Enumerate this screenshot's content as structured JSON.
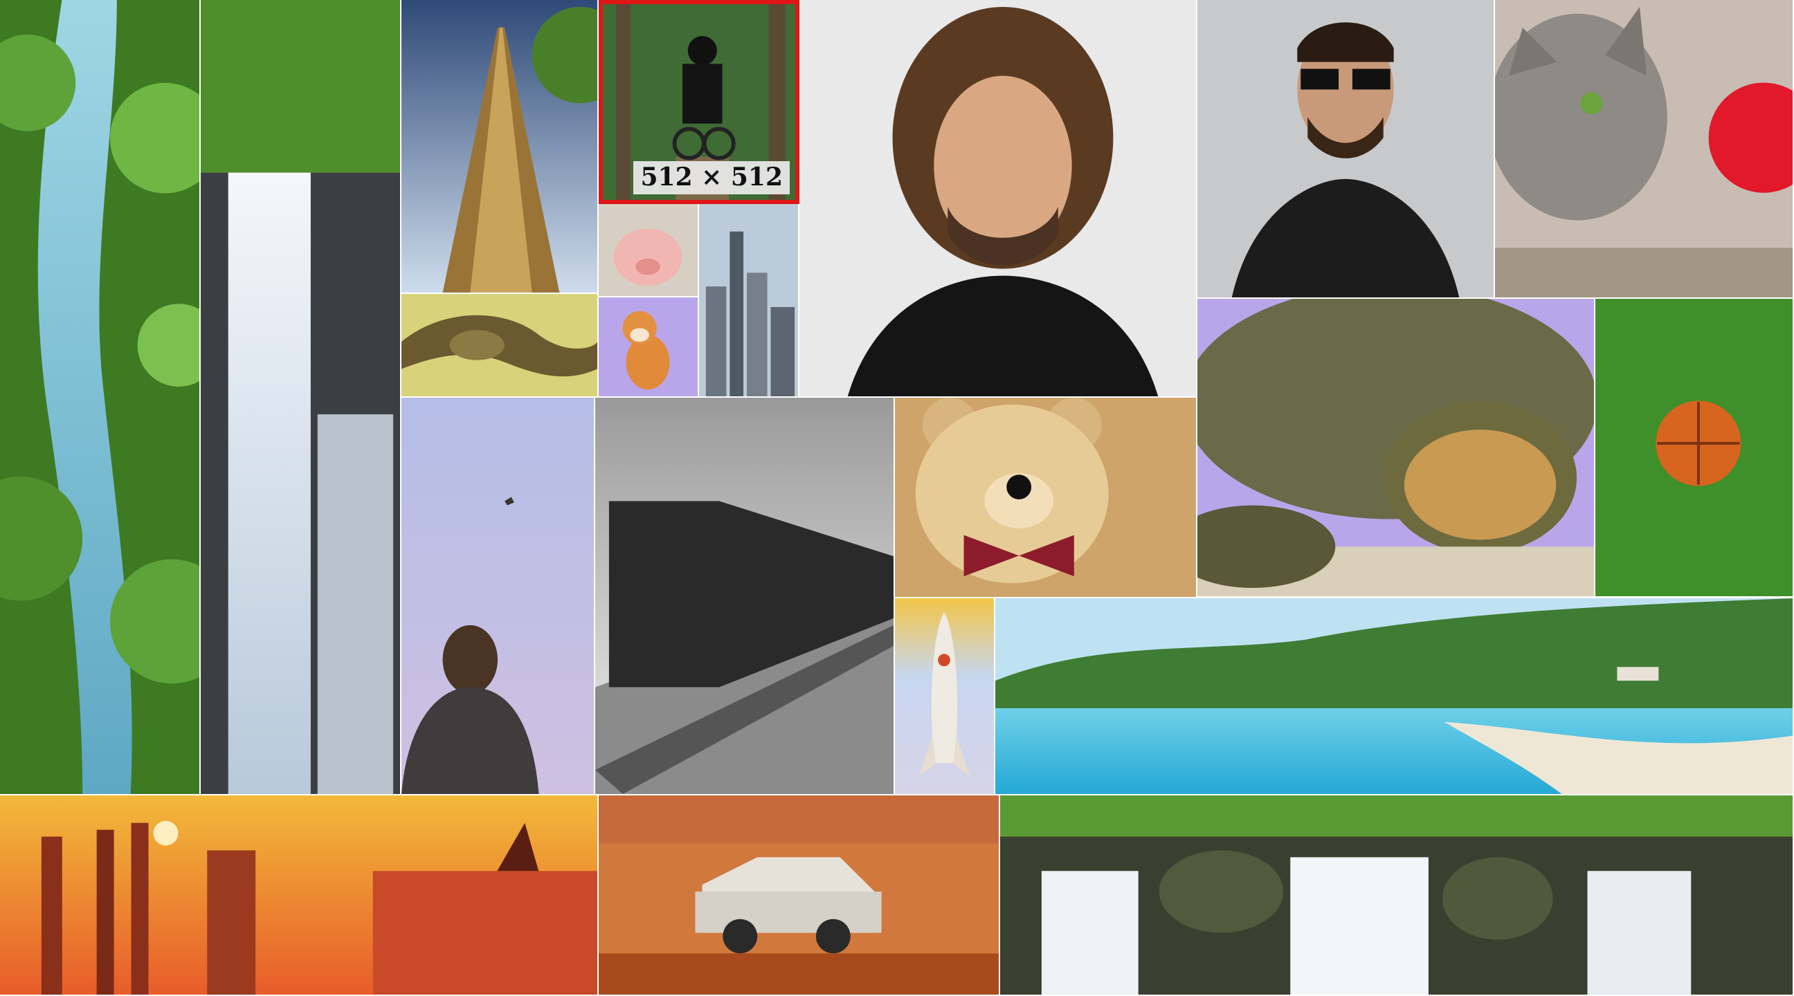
{
  "highlight": {
    "size_label": "512 × 512",
    "color": "#e01515"
  },
  "palette": {
    "forest": "#3f7d24",
    "water": "#7cc0d6",
    "sky": "#c7d6ea",
    "sunset": "#f2a13a",
    "studio_grey": "#d9d9d9",
    "turf": "#3f8f2a",
    "lavender": "#b9a6ea"
  }
}
